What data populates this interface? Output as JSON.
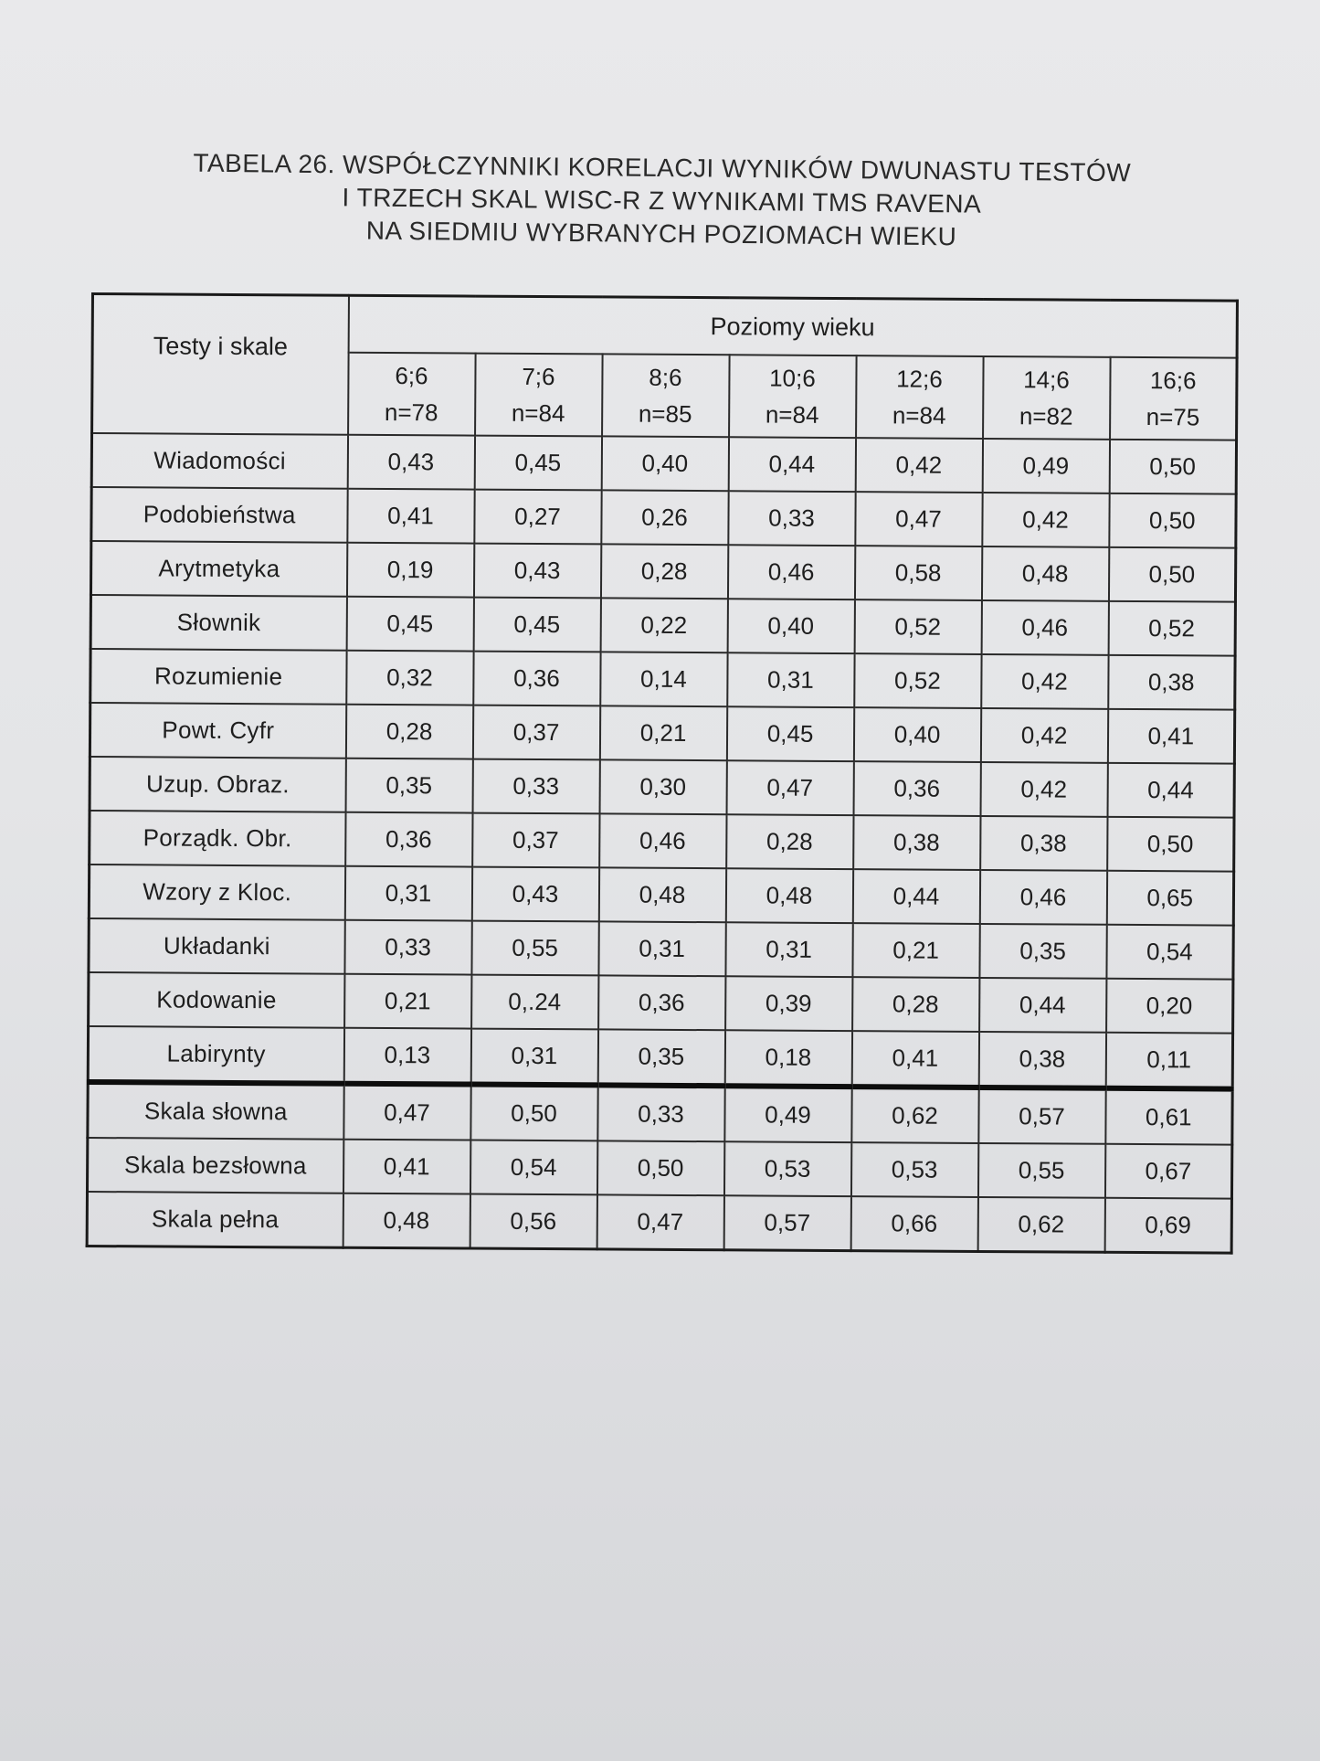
{
  "caption": {
    "line1": "TABELA 26. WSPÓŁCZYNNIKI KORELACJI WYNIKÓW DWUNASTU TESTÓW",
    "line2": "I TRZECH SKAL WISC-R Z WYNIKAMI TMS RAVENA",
    "line3": "NA SIEDMIU WYBRANYCH POZIOMACH WIEKU"
  },
  "table": {
    "row_header": "Testy i skale",
    "group_header": "Poziomy wieku",
    "columns": [
      {
        "age": "6;6",
        "n": "n=78"
      },
      {
        "age": "7;6",
        "n": "n=84"
      },
      {
        "age": "8;6",
        "n": "n=85"
      },
      {
        "age": "10;6",
        "n": "n=84"
      },
      {
        "age": "12;6",
        "n": "n=84"
      },
      {
        "age": "14;6",
        "n": "n=82"
      },
      {
        "age": "16;6",
        "n": "n=75"
      }
    ],
    "rows": [
      {
        "label": "Wiadomości",
        "values": [
          "0,43",
          "0,45",
          "0,40",
          "0,44",
          "0,42",
          "0,49",
          "0,50"
        ]
      },
      {
        "label": "Podobieństwa",
        "values": [
          "0,41",
          "0,27",
          "0,26",
          "0,33",
          "0,47",
          "0,42",
          "0,50"
        ]
      },
      {
        "label": "Arytmetyka",
        "values": [
          "0,19",
          "0,43",
          "0,28",
          "0,46",
          "0,58",
          "0,48",
          "0,50"
        ]
      },
      {
        "label": "Słownik",
        "values": [
          "0,45",
          "0,45",
          "0,22",
          "0,40",
          "0,52",
          "0,46",
          "0,52"
        ]
      },
      {
        "label": "Rozumienie",
        "values": [
          "0,32",
          "0,36",
          "0,14",
          "0,31",
          "0,52",
          "0,42",
          "0,38"
        ]
      },
      {
        "label": "Powt. Cyfr",
        "values": [
          "0,28",
          "0,37",
          "0,21",
          "0,45",
          "0,40",
          "0,42",
          "0,41"
        ]
      },
      {
        "label": "Uzup. Obraz.",
        "values": [
          "0,35",
          "0,33",
          "0,30",
          "0,47",
          "0,36",
          "0,42",
          "0,44"
        ]
      },
      {
        "label": "Porządk. Obr.",
        "values": [
          "0,36",
          "0,37",
          "0,46",
          "0,28",
          "0,38",
          "0,38",
          "0,50"
        ]
      },
      {
        "label": "Wzory z Kloc.",
        "values": [
          "0,31",
          "0,43",
          "0,48",
          "0,48",
          "0,44",
          "0,46",
          "0,65"
        ]
      },
      {
        "label": "Układanki",
        "values": [
          "0,33",
          "0,55",
          "0,31",
          "0,31",
          "0,21",
          "0,35",
          "0,54"
        ]
      },
      {
        "label": "Kodowanie",
        "values": [
          "0,21",
          "0,.24",
          "0,36",
          "0,39",
          "0,28",
          "0,44",
          "0,20"
        ]
      },
      {
        "label": "Labirynty",
        "values": [
          "0,13",
          "0,31",
          "0,35",
          "0,18",
          "0,41",
          "0,38",
          "0,11"
        ]
      },
      {
        "label": "Skala słowna",
        "values": [
          "0,47",
          "0,50",
          "0,33",
          "0,49",
          "0,62",
          "0,57",
          "0,61"
        ]
      },
      {
        "label": "Skala bezsłowna",
        "values": [
          "0,41",
          "0,54",
          "0,50",
          "0,53",
          "0,53",
          "0,55",
          "0,67"
        ]
      },
      {
        "label": "Skala pełna",
        "values": [
          "0,48",
          "0,56",
          "0,47",
          "0,57",
          "0,66",
          "0,62",
          "0,69"
        ]
      }
    ]
  }
}
